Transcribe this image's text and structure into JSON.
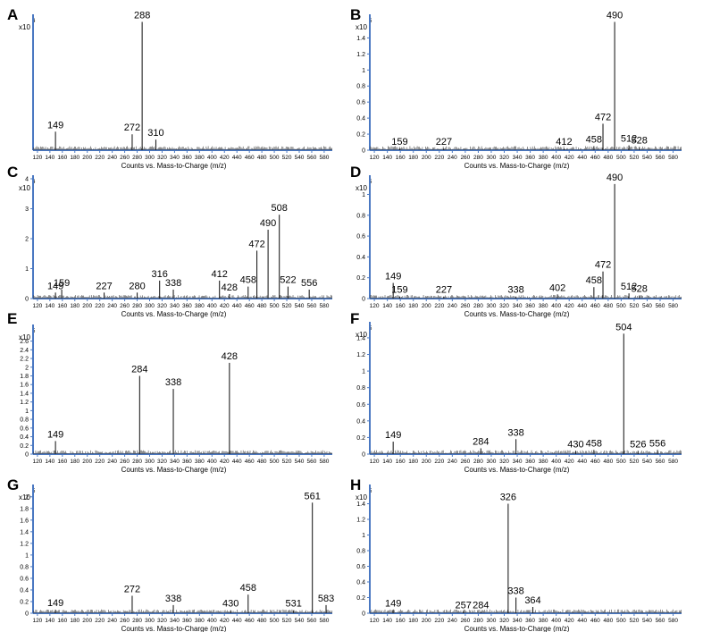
{
  "figure": {
    "xaxis_title": "Counts vs. Mass-to-Charge (m/z)",
    "exponent_prefix": "x10",
    "axis_color": "#4a78c2"
  },
  "chart_data": [
    {
      "panel": "A",
      "type": "line",
      "exponent": "4",
      "xlim": [
        113,
        593
      ],
      "x_ticks": [
        120,
        140,
        160,
        180,
        200,
        220,
        240,
        260,
        280,
        300,
        320,
        340,
        360,
        380,
        400,
        420,
        440,
        460,
        480,
        500,
        520,
        540,
        560,
        580
      ],
      "ylim": [
        0,
        1
      ],
      "y_ticks": [],
      "peaks": [
        {
          "mz": 149,
          "value": 0.14,
          "label": "149"
        },
        {
          "mz": 272,
          "value": 0.12,
          "label": "272"
        },
        {
          "mz": 288,
          "value": 0.97,
          "label": "288"
        },
        {
          "mz": 310,
          "value": 0.08,
          "label": "310"
        }
      ]
    },
    {
      "panel": "B",
      "type": "line",
      "exponent": "5",
      "xlim": [
        113,
        593
      ],
      "x_ticks": [
        120,
        140,
        160,
        180,
        200,
        220,
        240,
        260,
        280,
        300,
        320,
        340,
        360,
        380,
        400,
        420,
        440,
        460,
        480,
        500,
        520,
        540,
        560,
        580
      ],
      "ylim": [
        0,
        1.65
      ],
      "y_ticks": [
        "0",
        "0.2",
        "0.4",
        "0.6",
        "0.8",
        "1",
        "1.2",
        "1.4"
      ],
      "peaks": [
        {
          "mz": 159,
          "value": 0.02,
          "label": "159"
        },
        {
          "mz": 227,
          "value": 0.02,
          "label": "227"
        },
        {
          "mz": 412,
          "value": 0.02,
          "label": "412"
        },
        {
          "mz": 458,
          "value": 0.05,
          "label": "458"
        },
        {
          "mz": 472,
          "value": 0.33,
          "label": "472"
        },
        {
          "mz": 490,
          "value": 1.6,
          "label": "490"
        },
        {
          "mz": 512,
          "value": 0.06,
          "label": "512"
        },
        {
          "mz": 528,
          "value": 0.04,
          "label": "528"
        }
      ]
    },
    {
      "panel": "C",
      "type": "line",
      "exponent": "4",
      "xlim": [
        113,
        593
      ],
      "x_ticks": [
        120,
        140,
        160,
        180,
        200,
        220,
        240,
        260,
        280,
        300,
        320,
        340,
        360,
        380,
        400,
        420,
        440,
        460,
        480,
        500,
        520,
        540,
        560,
        580
      ],
      "ylim": [
        0,
        4
      ],
      "y_ticks": [
        "0",
        "1",
        "2",
        "3",
        "4"
      ],
      "peaks": [
        {
          "mz": 149,
          "value": 0.2,
          "label": "149"
        },
        {
          "mz": 159,
          "value": 0.3,
          "label": "159"
        },
        {
          "mz": 227,
          "value": 0.2,
          "label": "227"
        },
        {
          "mz": 280,
          "value": 0.2,
          "label": "280"
        },
        {
          "mz": 316,
          "value": 0.6,
          "label": "316"
        },
        {
          "mz": 338,
          "value": 0.3,
          "label": "338"
        },
        {
          "mz": 412,
          "value": 0.6,
          "label": "412"
        },
        {
          "mz": 428,
          "value": 0.15,
          "label": "428"
        },
        {
          "mz": 458,
          "value": 0.4,
          "label": "458"
        },
        {
          "mz": 472,
          "value": 1.6,
          "label": "472"
        },
        {
          "mz": 490,
          "value": 2.3,
          "label": "490"
        },
        {
          "mz": 508,
          "value": 2.8,
          "label": "508"
        },
        {
          "mz": 522,
          "value": 0.4,
          "label": "522"
        },
        {
          "mz": 556,
          "value": 0.3,
          "label": "556"
        }
      ]
    },
    {
      "panel": "D",
      "type": "line",
      "exponent": "5",
      "xlim": [
        113,
        593
      ],
      "x_ticks": [
        120,
        140,
        160,
        180,
        200,
        220,
        240,
        260,
        280,
        300,
        320,
        340,
        360,
        380,
        400,
        420,
        440,
        460,
        480,
        500,
        520,
        540,
        560,
        580
      ],
      "ylim": [
        0,
        1.15
      ],
      "y_ticks": [
        "0",
        "0.2",
        "0.4",
        "0.6",
        "0.8",
        "1"
      ],
      "peaks": [
        {
          "mz": 149,
          "value": 0.15,
          "label": "149"
        },
        {
          "mz": 159,
          "value": 0.02,
          "label": "159"
        },
        {
          "mz": 227,
          "value": 0.02,
          "label": "227"
        },
        {
          "mz": 338,
          "value": 0.02,
          "label": "338"
        },
        {
          "mz": 402,
          "value": 0.04,
          "label": "402"
        },
        {
          "mz": 458,
          "value": 0.11,
          "label": "458"
        },
        {
          "mz": 472,
          "value": 0.26,
          "label": "472"
        },
        {
          "mz": 490,
          "value": 1.1,
          "label": "490"
        },
        {
          "mz": 512,
          "value": 0.05,
          "label": "512"
        },
        {
          "mz": 528,
          "value": 0.03,
          "label": "528"
        }
      ]
    },
    {
      "panel": "E",
      "type": "line",
      "exponent": "5",
      "xlim": [
        113,
        593
      ],
      "x_ticks": [
        120,
        140,
        160,
        180,
        200,
        220,
        240,
        260,
        280,
        300,
        320,
        340,
        360,
        380,
        400,
        420,
        440,
        460,
        480,
        500,
        520,
        540,
        560,
        580
      ],
      "ylim": [
        0,
        2.9
      ],
      "y_ticks": [
        "0",
        "0.2",
        "0.4",
        "0.6",
        "0.8",
        "1",
        "1.2",
        "1.4",
        "1.6",
        "1.8",
        "2",
        "2.2",
        "2.4",
        "2.6"
      ],
      "peaks": [
        {
          "mz": 149,
          "value": 0.3,
          "label": "149"
        },
        {
          "mz": 284,
          "value": 1.8,
          "label": "284"
        },
        {
          "mz": 338,
          "value": 1.5,
          "label": "338"
        },
        {
          "mz": 428,
          "value": 2.1,
          "label": "428"
        }
      ]
    },
    {
      "panel": "F",
      "type": "line",
      "exponent": "5",
      "xlim": [
        113,
        593
      ],
      "x_ticks": [
        120,
        140,
        160,
        180,
        200,
        220,
        240,
        260,
        280,
        300,
        320,
        340,
        360,
        380,
        400,
        420,
        440,
        460,
        480,
        500,
        520,
        540,
        560,
        580
      ],
      "ylim": [
        0,
        1.55
      ],
      "y_ticks": [
        "0",
        "0.2",
        "0.4",
        "0.6",
        "0.8",
        "1",
        "1.2",
        "1.4"
      ],
      "peaks": [
        {
          "mz": 149,
          "value": 0.15,
          "label": "149"
        },
        {
          "mz": 284,
          "value": 0.07,
          "label": "284"
        },
        {
          "mz": 338,
          "value": 0.18,
          "label": "338"
        },
        {
          "mz": 430,
          "value": 0.04,
          "label": "430"
        },
        {
          "mz": 458,
          "value": 0.05,
          "label": "458"
        },
        {
          "mz": 504,
          "value": 1.45,
          "label": "504"
        },
        {
          "mz": 526,
          "value": 0.04,
          "label": "526"
        },
        {
          "mz": 556,
          "value": 0.05,
          "label": "556"
        }
      ]
    },
    {
      "panel": "G",
      "type": "line",
      "exponent": "5",
      "xlim": [
        113,
        593
      ],
      "x_ticks": [
        120,
        140,
        160,
        180,
        200,
        220,
        240,
        260,
        280,
        300,
        320,
        340,
        360,
        380,
        400,
        420,
        440,
        460,
        480,
        500,
        520,
        540,
        560,
        580
      ],
      "ylim": [
        0,
        2.15
      ],
      "y_ticks": [
        "0",
        "0.2",
        "0.4",
        "0.6",
        "0.8",
        "1",
        "1.2",
        "1.4",
        "1.6",
        "1.8",
        "2"
      ],
      "peaks": [
        {
          "mz": 149,
          "value": 0.06,
          "label": "149"
        },
        {
          "mz": 272,
          "value": 0.3,
          "label": "272"
        },
        {
          "mz": 338,
          "value": 0.14,
          "label": "338"
        },
        {
          "mz": 430,
          "value": 0.05,
          "label": "430"
        },
        {
          "mz": 458,
          "value": 0.32,
          "label": "458"
        },
        {
          "mz": 531,
          "value": 0.05,
          "label": "531"
        },
        {
          "mz": 561,
          "value": 1.9,
          "label": "561"
        },
        {
          "mz": 583,
          "value": 0.14,
          "label": "583"
        }
      ]
    },
    {
      "panel": "H",
      "type": "line",
      "exponent": "5",
      "xlim": [
        113,
        593
      ],
      "x_ticks": [
        120,
        140,
        160,
        180,
        200,
        220,
        240,
        260,
        280,
        300,
        320,
        340,
        360,
        380,
        400,
        420,
        440,
        460,
        480,
        500,
        520,
        540,
        560,
        580
      ],
      "ylim": [
        0,
        1.6
      ],
      "y_ticks": [
        "0",
        "0.2",
        "0.4",
        "0.6",
        "0.8",
        "1",
        "1.2",
        "1.4"
      ],
      "peaks": [
        {
          "mz": 149,
          "value": 0.04,
          "label": "149"
        },
        {
          "mz": 257,
          "value": 0.02,
          "label": "257"
        },
        {
          "mz": 284,
          "value": 0.02,
          "label": "284"
        },
        {
          "mz": 326,
          "value": 1.4,
          "label": "326"
        },
        {
          "mz": 338,
          "value": 0.2,
          "label": "338"
        },
        {
          "mz": 364,
          "value": 0.08,
          "label": "364"
        }
      ]
    }
  ]
}
